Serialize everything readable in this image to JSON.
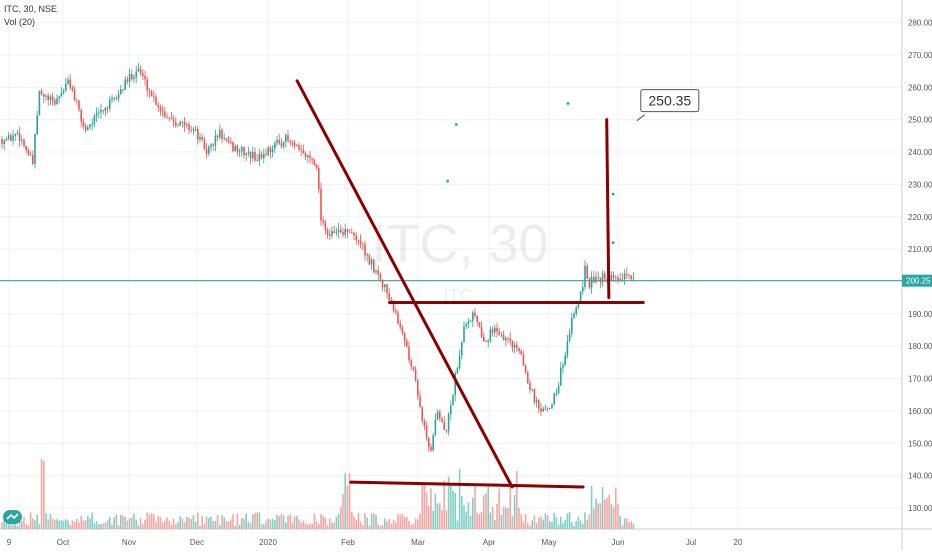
{
  "header": {
    "symbol_line": "ITC, 30, NSE",
    "volume_line": "Vol (20)"
  },
  "watermark": {
    "symbol": "ITC, 30",
    "name": "ITC"
  },
  "annotation": {
    "target_label": "250.35"
  },
  "colors": {
    "up": "#26a69a",
    "down": "#ef5350",
    "trendline": "#8b0000",
    "current_price_line": "#2ba6a0",
    "volume_up": "#7fcfc6",
    "volume_down": "#f4a6a4",
    "grid": "#eef0f3",
    "axis_text": "#555555",
    "label_border": "#555555"
  },
  "chart_data": {
    "type": "candlestick",
    "title": "ITC, 30, NSE",
    "y_axis": {
      "ticks": [
        "130.00",
        "140.00",
        "150.00",
        "160.00",
        "170.00",
        "180.00",
        "190.00",
        "200.00",
        "210.00",
        "220.00",
        "230.00",
        "240.00",
        "250.00",
        "260.00",
        "270.00",
        "280.00"
      ],
      "range": [
        124,
        283
      ]
    },
    "x_axis": {
      "ticks": [
        "9",
        "Oct",
        "Nov",
        "Dec",
        "2020",
        "Feb",
        "Mar",
        "Apr",
        "May",
        "Jun",
        "Jul",
        "20"
      ]
    },
    "current_price": {
      "value": 200.25,
      "label": "200.25"
    },
    "price_path": [
      [
        "2019-09-09",
        244
      ],
      [
        "2019-09-13",
        246
      ],
      [
        "2019-09-17",
        241
      ],
      [
        "2019-09-20",
        236
      ],
      [
        "2019-09-23",
        258
      ],
      [
        "2019-09-30",
        255
      ],
      [
        "2019-10-07",
        262
      ],
      [
        "2019-10-14",
        247
      ],
      [
        "2019-10-21",
        252
      ],
      [
        "2019-10-28",
        256
      ],
      [
        "2019-11-04",
        263
      ],
      [
        "2019-11-08",
        266
      ],
      [
        "2019-11-14",
        258
      ],
      [
        "2019-11-20",
        252
      ],
      [
        "2019-11-27",
        249
      ],
      [
        "2019-12-04",
        247
      ],
      [
        "2019-12-10",
        240
      ],
      [
        "2019-12-16",
        246
      ],
      [
        "2019-12-20",
        242
      ],
      [
        "2019-12-27",
        240
      ],
      [
        "2020-01-03",
        238
      ],
      [
        "2020-01-10",
        242
      ],
      [
        "2020-01-16",
        244
      ],
      [
        "2020-01-22",
        240
      ],
      [
        "2020-01-30",
        237
      ],
      [
        "2020-02-01",
        220
      ],
      [
        "2020-02-05",
        214
      ],
      [
        "2020-02-12",
        216
      ],
      [
        "2020-02-19",
        212
      ],
      [
        "2020-02-25",
        205
      ],
      [
        "2020-03-02",
        198
      ],
      [
        "2020-03-06",
        192
      ],
      [
        "2020-03-11",
        182
      ],
      [
        "2020-03-16",
        170
      ],
      [
        "2020-03-19",
        158
      ],
      [
        "2020-03-23",
        145
      ],
      [
        "2020-03-26",
        160
      ],
      [
        "2020-03-30",
        152
      ],
      [
        "2020-04-02",
        164
      ],
      [
        "2020-04-08",
        188
      ],
      [
        "2020-04-13",
        190
      ],
      [
        "2020-04-17",
        182
      ],
      [
        "2020-04-22",
        185
      ],
      [
        "2020-04-28",
        182
      ],
      [
        "2020-05-04",
        178
      ],
      [
        "2020-05-08",
        168
      ],
      [
        "2020-05-12",
        161
      ],
      [
        "2020-05-15",
        159
      ],
      [
        "2020-05-19",
        163
      ],
      [
        "2020-05-22",
        170
      ],
      [
        "2020-05-26",
        182
      ],
      [
        "2020-05-28",
        190
      ],
      [
        "2020-06-01",
        196
      ],
      [
        "2020-06-03",
        204
      ],
      [
        "2020-06-05",
        199
      ],
      [
        "2020-06-08",
        202
      ],
      [
        "2020-06-10",
        201
      ]
    ],
    "trendlines": [
      {
        "from": [
          "2020-01-21",
          262
        ],
        "to": [
          "2020-04-30",
          136.5
        ]
      },
      {
        "from": [
          "2020-03-04",
          193.5
        ],
        "to": [
          "2020-06-30",
          193.5
        ]
      },
      {
        "from": [
          "2020-02-15",
          138
        ],
        "to": [
          "2020-06-02",
          136.5
        ]
      },
      {
        "from": [
          "2020-06-13",
          250
        ],
        "to": [
          "2020-06-14",
          195
        ]
      }
    ],
    "markers": [
      [
        "2020-04-04",
        248.5
      ],
      [
        "2020-03-31",
        231
      ],
      [
        "2020-05-26",
        255
      ],
      [
        "2020-06-16",
        227
      ],
      [
        "2020-06-16",
        212
      ]
    ],
    "target_label": {
      "text": "250.35",
      "anchor": [
        "2020-06-27",
        250
      ]
    },
    "grid": true,
    "volume": true
  }
}
